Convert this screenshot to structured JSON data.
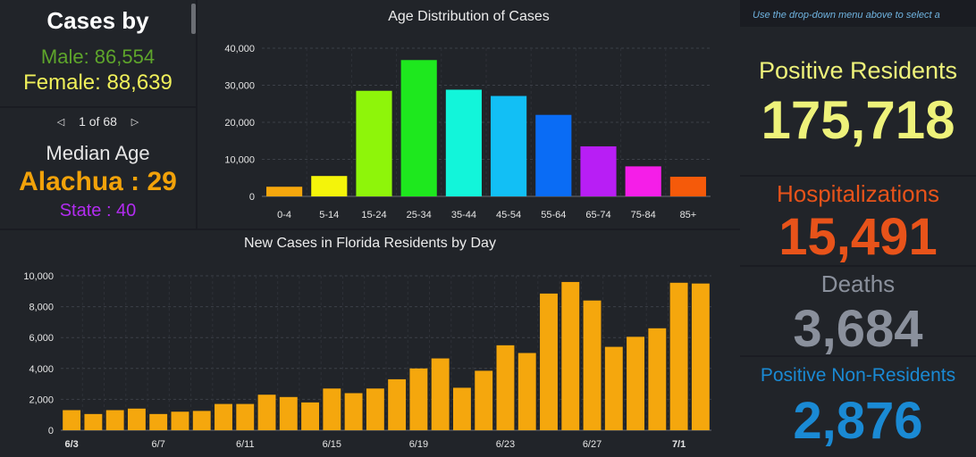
{
  "gender": {
    "title": "Cases by",
    "male": "Male: 86,554",
    "female": "Female: 88,639"
  },
  "median": {
    "pager": "1 of 68",
    "title": "Median Age",
    "county": "Alachua : 29",
    "state": "State : 40"
  },
  "instruction": "Use the drop-down menu above to select a",
  "kpis": {
    "positive_residents": {
      "label": "Positive Residents",
      "value": "175,718",
      "color": "#eef27a"
    },
    "hospitalizations": {
      "label": "Hospitalizations",
      "value": "15,491",
      "color": "#e8531a"
    },
    "deaths": {
      "label": "Deaths",
      "value": "3,684",
      "color": "#8a909c"
    },
    "non_residents": {
      "label": "Positive Non-Residents",
      "value": "2,876",
      "color": "#1a8ad4"
    }
  },
  "colors": {
    "daily_bar": "#f5a70d",
    "panel_bg": "#212429",
    "page_bg": "#1a1c22"
  },
  "chart_data": [
    {
      "type": "bar",
      "title": "Age Distribution of Cases",
      "categories": [
        "0-4",
        "5-14",
        "15-24",
        "25-34",
        "35-44",
        "45-54",
        "55-64",
        "65-74",
        "75-84",
        "85+"
      ],
      "values": [
        2600,
        5500,
        28500,
        36800,
        28800,
        27100,
        22000,
        13500,
        8100,
        5300
      ],
      "colors": [
        "#f5a70d",
        "#f4f40a",
        "#8ef50a",
        "#1ee81e",
        "#12f5da",
        "#12bff5",
        "#0a6cf5",
        "#b81ef5",
        "#f51ee8",
        "#f55a0a"
      ],
      "ylim": [
        0,
        40000
      ],
      "yticks": [
        0,
        10000,
        20000,
        30000,
        40000
      ],
      "ytick_labels": [
        "0",
        "10,000",
        "20,000",
        "30,000",
        "40,000"
      ],
      "grid": true
    },
    {
      "type": "bar",
      "title": "New Cases in Florida Residents by Day",
      "categories": [
        "6/3",
        "6/4",
        "6/5",
        "6/6",
        "6/7",
        "6/8",
        "6/9",
        "6/10",
        "6/11",
        "6/12",
        "6/13",
        "6/14",
        "6/15",
        "6/16",
        "6/17",
        "6/18",
        "6/19",
        "6/20",
        "6/21",
        "6/22",
        "6/23",
        "6/24",
        "6/25",
        "6/26",
        "6/27",
        "6/28",
        "6/29",
        "6/30",
        "7/1",
        "7/2"
      ],
      "values": [
        1300,
        1050,
        1300,
        1400,
        1050,
        1200,
        1250,
        1700,
        1700,
        2300,
        2150,
        1800,
        2700,
        2400,
        2700,
        3300,
        4000,
        4650,
        2750,
        3850,
        5500,
        5000,
        8850,
        9600,
        8400,
        5400,
        6050,
        6600,
        9550,
        9500
      ],
      "tick_labels": [
        "6/3",
        "6/7",
        "6/11",
        "6/15",
        "6/19",
        "6/23",
        "6/27",
        "7/1"
      ],
      "bold_ticks": [
        "6/3",
        "7/1"
      ],
      "ylim": [
        0,
        10000
      ],
      "yticks": [
        0,
        2000,
        4000,
        6000,
        8000,
        10000
      ],
      "ytick_labels": [
        "0",
        "2,000",
        "4,000",
        "6,000",
        "8,000",
        "10,000"
      ],
      "grid": true
    }
  ]
}
